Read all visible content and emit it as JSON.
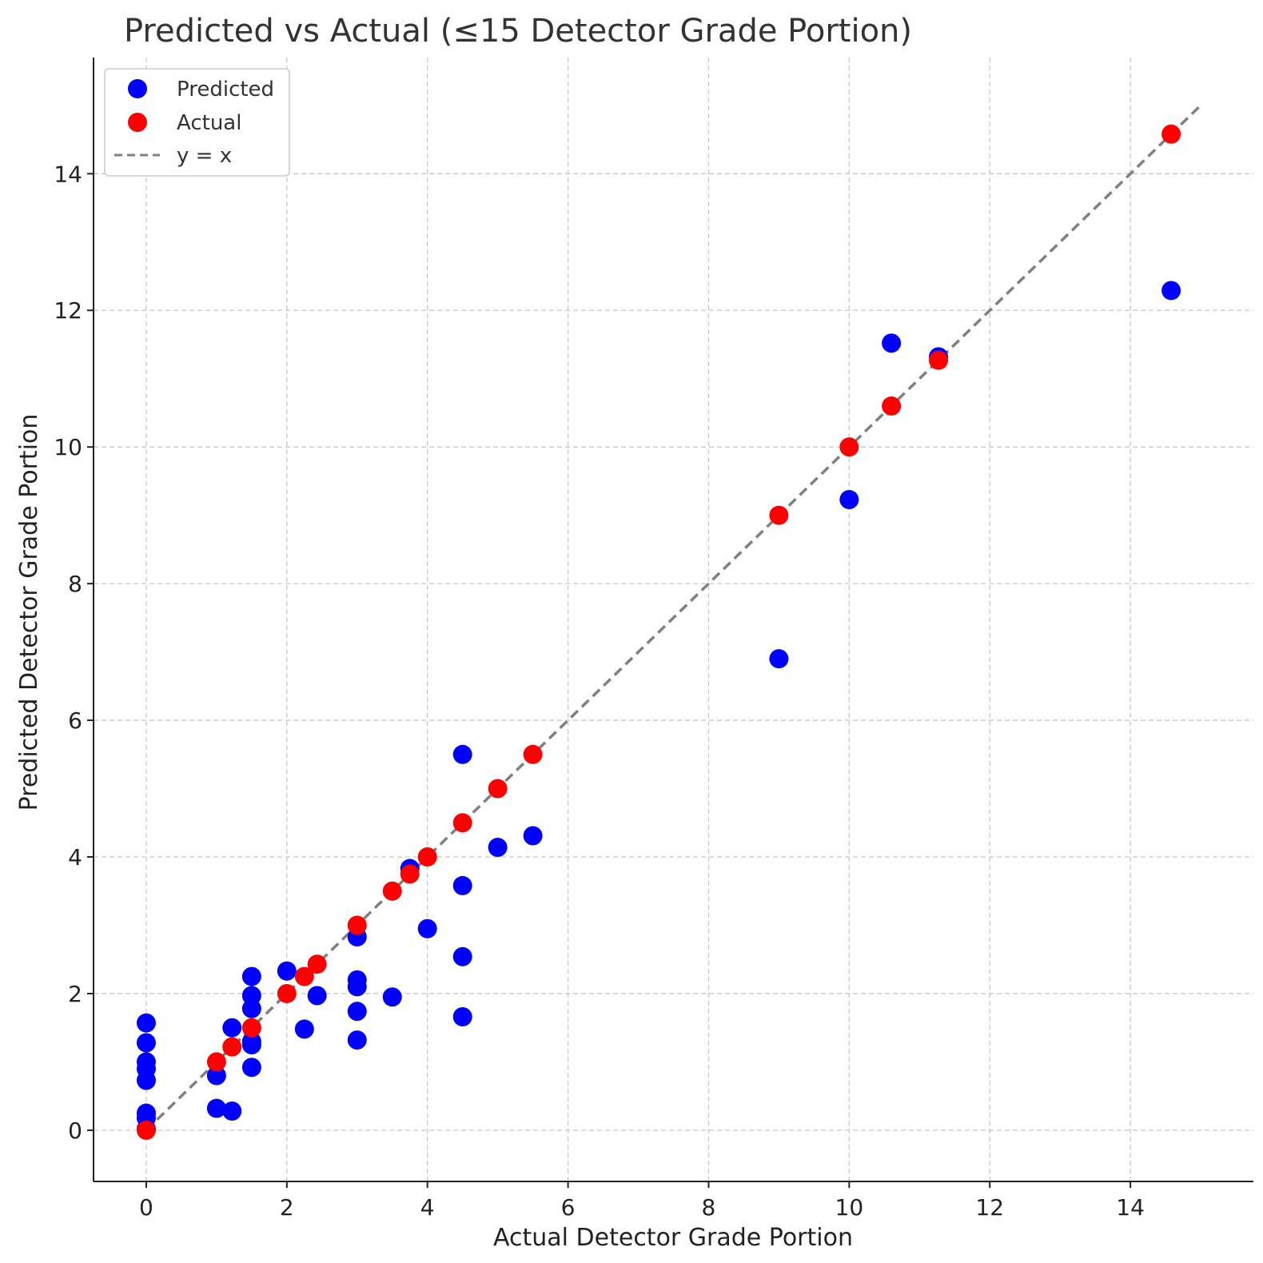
{
  "chart_data": {
    "type": "scatter",
    "title": "Predicted vs Actual (≤15 Detector Grade Portion)",
    "xlabel": "Actual Detector Grade Portion",
    "ylabel": "Predicted Detector Grade Portion",
    "xlim": [
      -0.75,
      15.75
    ],
    "ylim": [
      -0.75,
      15.7
    ],
    "xticks": [
      0,
      2,
      4,
      6,
      8,
      10,
      12,
      14
    ],
    "yticks": [
      0,
      2,
      4,
      6,
      8,
      10,
      12,
      14
    ],
    "grid": true,
    "legend_position": "top-left",
    "colors": {
      "predicted": "#0000ff",
      "actual": "#ff0000",
      "reference": "#808080"
    },
    "series": [
      {
        "name": "Predicted",
        "color": "#0000ff",
        "points": [
          [
            0,
            1.57
          ],
          [
            0,
            1.28
          ],
          [
            0,
            1.0
          ],
          [
            0,
            0.9
          ],
          [
            0,
            0.73
          ],
          [
            0,
            0.25
          ],
          [
            0,
            0.18
          ],
          [
            0,
            0.02
          ],
          [
            1.0,
            0.8
          ],
          [
            1.0,
            0.32
          ],
          [
            1.22,
            1.5
          ],
          [
            1.22,
            0.28
          ],
          [
            1.5,
            2.25
          ],
          [
            1.5,
            1.97
          ],
          [
            1.5,
            1.78
          ],
          [
            1.5,
            1.3
          ],
          [
            1.5,
            1.25
          ],
          [
            1.5,
            0.92
          ],
          [
            2.0,
            2.33
          ],
          [
            2.25,
            1.48
          ],
          [
            2.43,
            1.97
          ],
          [
            3.0,
            2.83
          ],
          [
            3.0,
            2.2
          ],
          [
            3.0,
            2.1
          ],
          [
            3.0,
            1.74
          ],
          [
            3.0,
            1.32
          ],
          [
            3.5,
            1.95
          ],
          [
            3.75,
            3.83
          ],
          [
            4.0,
            2.95
          ],
          [
            4.5,
            5.5
          ],
          [
            4.5,
            3.58
          ],
          [
            4.5,
            2.54
          ],
          [
            4.5,
            1.66
          ],
          [
            5.0,
            4.14
          ],
          [
            5.5,
            4.31
          ],
          [
            9.0,
            6.9
          ],
          [
            10.0,
            9.23
          ],
          [
            10.6,
            11.52
          ],
          [
            11.27,
            11.32
          ],
          [
            14.58,
            12.29
          ]
        ]
      },
      {
        "name": "Actual",
        "color": "#ff0000",
        "points": [
          [
            0,
            0
          ],
          [
            1.0,
            1.0
          ],
          [
            1.22,
            1.22
          ],
          [
            1.5,
            1.5
          ],
          [
            2.0,
            2.0
          ],
          [
            2.25,
            2.25
          ],
          [
            2.43,
            2.43
          ],
          [
            3.0,
            3.0
          ],
          [
            3.5,
            3.5
          ],
          [
            3.75,
            3.75
          ],
          [
            4.0,
            4.0
          ],
          [
            4.5,
            4.5
          ],
          [
            5.0,
            5.0
          ],
          [
            5.5,
            5.5
          ],
          [
            9.0,
            9.0
          ],
          [
            10.0,
            10.0
          ],
          [
            10.6,
            10.6
          ],
          [
            11.27,
            11.27
          ],
          [
            14.58,
            14.58
          ]
        ]
      },
      {
        "name": "y = x",
        "type": "line",
        "style": "dashed",
        "color": "#808080",
        "points": [
          [
            0,
            0
          ],
          [
            15,
            15
          ]
        ]
      }
    ]
  }
}
